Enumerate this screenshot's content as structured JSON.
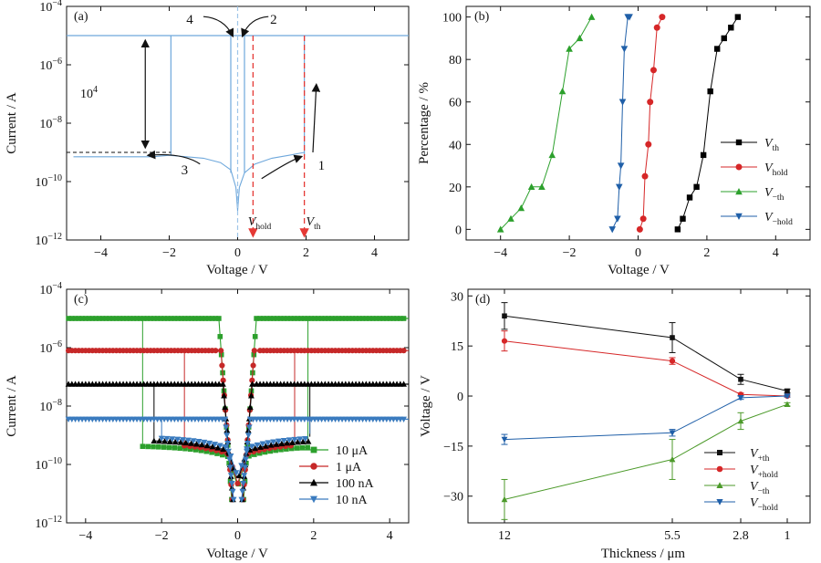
{
  "chart_data": [
    {
      "panel": "(a)",
      "type": "line",
      "xlabel": "Voltage / V",
      "ylabel": "Current / A",
      "xlim": [
        -5,
        5
      ],
      "ylim_log10": [
        -12,
        -4
      ],
      "y_log": true,
      "x_ticks": [
        "−4",
        "−2",
        "0",
        "2",
        "4"
      ],
      "y_ticks": [
        "10",
        "10",
        "10",
        "10",
        "10"
      ],
      "y_tick_exps": [
        "−12",
        "−10",
        "−8",
        "−6",
        "−4"
      ],
      "compliance_current": 1e-05,
      "off_current_at_threshold": 1e-09,
      "series": [
        {
          "color": "#6fa8dc",
          "x": [
            -4.8,
            -4.0,
            -3.0,
            -2.5,
            -2.0,
            -1.5,
            -1.0,
            -0.5,
            -0.2,
            -0.05,
            0,
            0.05,
            0.2,
            0.5,
            1.0,
            1.5,
            1.95
          ],
          "y_log10": [
            -9.15,
            -9.15,
            -9.15,
            -9.15,
            -9.1,
            -9.15,
            -9.2,
            -9.35,
            -9.6,
            -10.2,
            -11.0,
            -10.2,
            -9.7,
            -9.4,
            -9.2,
            -9.1,
            -9.0
          ]
        }
      ],
      "annotations": [
        {
          "text": "1"
        },
        {
          "text": "2"
        },
        {
          "text": "3"
        },
        {
          "text": "4"
        },
        {
          "text": "10",
          "sup": "4"
        },
        {
          "text": "V",
          "sub": "hold"
        },
        {
          "text": "V",
          "sub": "th"
        }
      ]
    },
    {
      "panel": "(b)",
      "type": "line",
      "xlabel": "Voltage / V",
      "ylabel": "Percentage / %",
      "xlim": [
        -5,
        5
      ],
      "ylim": [
        -5,
        105
      ],
      "x_ticks": [
        "−4",
        "−2",
        "0",
        "2",
        "4"
      ],
      "y_ticks": [
        "0",
        "20",
        "40",
        "60",
        "80",
        "100"
      ],
      "legend_position": "center-right",
      "series": [
        {
          "name": "V",
          "sub": "th",
          "color": "#000000",
          "marker": "square",
          "x": [
            1.15,
            1.3,
            1.5,
            1.7,
            1.9,
            2.1,
            2.3,
            2.5,
            2.7,
            2.9
          ],
          "y": [
            0,
            5,
            15,
            20,
            35,
            65,
            85,
            90,
            95,
            100
          ]
        },
        {
          "name": "V",
          "sub": "hold",
          "color": "#d62728",
          "marker": "circle",
          "x": [
            0.05,
            0.15,
            0.2,
            0.3,
            0.35,
            0.45,
            0.55,
            0.7
          ],
          "y": [
            0,
            5,
            25,
            40,
            60,
            75,
            95,
            100
          ]
        },
        {
          "name": "V",
          "sub": "−th",
          "color": "#2ca02c",
          "marker": "triangle-up",
          "x": [
            -4.0,
            -3.7,
            -3.4,
            -3.1,
            -2.8,
            -2.5,
            -2.2,
            -2.0,
            -1.7,
            -1.35
          ],
          "y": [
            0,
            5,
            10,
            20,
            20,
            35,
            65,
            85,
            90,
            100
          ]
        },
        {
          "name": "V",
          "sub": "−hold",
          "color": "#1f5fa8",
          "marker": "triangle-down",
          "x": [
            -0.75,
            -0.6,
            -0.55,
            -0.5,
            -0.45,
            -0.4,
            -0.3,
            -0.25
          ],
          "y": [
            0,
            5,
            20,
            30,
            60,
            85,
            100,
            100
          ]
        }
      ]
    },
    {
      "panel": "(c)",
      "type": "line",
      "xlabel": "Voltage / V",
      "ylabel": "Current / A",
      "xlim": [
        -4.5,
        4.5
      ],
      "ylim_log10": [
        -12,
        -4
      ],
      "y_log": true,
      "x_ticks": [
        "−4",
        "−2",
        "0",
        "2",
        "4"
      ],
      "y_ticks": [
        "10",
        "10",
        "10",
        "10",
        "10"
      ],
      "y_tick_exps": [
        "−12",
        "−10",
        "−8",
        "−6",
        "−4"
      ],
      "legend_position": "lower-right",
      "series": [
        {
          "name": "10 μA",
          "color": "#2ca02c",
          "marker": "square",
          "on_log10": -5.0,
          "pos_th": 1.85,
          "neg_th": -2.5,
          "hold": 0.45
        },
        {
          "name": "1 μA",
          "color": "#c62828",
          "marker": "circle",
          "on_log10": -6.1,
          "pos_th": 1.5,
          "neg_th": -1.4,
          "hold": 0.4
        },
        {
          "name": "100 nA",
          "color": "#000000",
          "marker": "triangle-up",
          "on_log10": -7.25,
          "pos_th": 1.9,
          "neg_th": -2.2,
          "hold": 0.35
        },
        {
          "name": "10 nA",
          "color": "#3a7bbf",
          "marker": "triangle-down",
          "on_log10": -8.45,
          "pos_th": 1.9,
          "neg_th": -2.0,
          "hold": 0.3
        }
      ]
    },
    {
      "panel": "(d)",
      "type": "line",
      "xlabel": "Thickness / μm",
      "ylabel": "Voltage / V",
      "categories": [
        "12",
        "5.5",
        "2.8",
        "1"
      ],
      "ylim": [
        -38,
        32
      ],
      "y_ticks": [
        "−30",
        "−15",
        "0",
        "15",
        "30"
      ],
      "legend_position": "lower-right",
      "series": [
        {
          "name": "V",
          "sub": "+th",
          "color": "#111111",
          "marker": "square",
          "values": [
            24,
            17.5,
            5,
            1.5
          ],
          "errors": [
            4,
            4.5,
            1.5,
            0.6
          ]
        },
        {
          "name": "V",
          "sub": "+hold",
          "color": "#d62728",
          "marker": "circle",
          "values": [
            16.5,
            10.5,
            0.5,
            0
          ],
          "errors": [
            3,
            1,
            0.4,
            0.3
          ]
        },
        {
          "name": "V",
          "sub": "−th",
          "color": "#4c9a2a",
          "marker": "triangle-up",
          "values": [
            -31,
            -19,
            -7.5,
            -2.5
          ],
          "errors": [
            6,
            6,
            2.5,
            0.5
          ]
        },
        {
          "name": "V",
          "sub": "−hold",
          "color": "#1f5fa8",
          "marker": "triangle-down",
          "values": [
            -13,
            -11,
            -0.5,
            0
          ],
          "errors": [
            1.5,
            1,
            0.5,
            0.3
          ]
        }
      ]
    }
  ]
}
